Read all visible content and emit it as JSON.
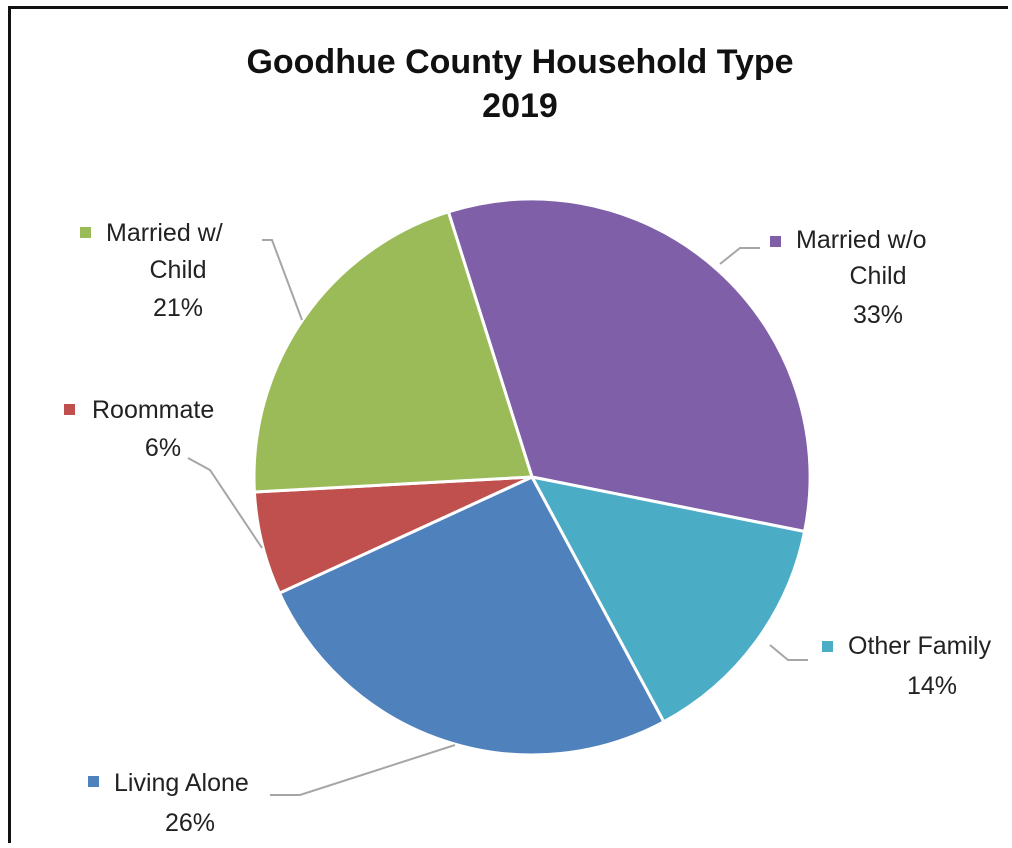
{
  "chart_data": {
    "type": "pie",
    "title": [
      "Goodhue County Household Type",
      "2019"
    ],
    "start_angle_deg": -17.5,
    "direction": "clockwise",
    "slices": [
      {
        "label": [
          "Married w/o",
          "Child"
        ],
        "pct_text": "33%",
        "value": 33,
        "color": "#7F5FA8"
      },
      {
        "label": [
          "Other Family"
        ],
        "pct_text": "14%",
        "value": 14,
        "color": "#4BACC6"
      },
      {
        "label": [
          "Living Alone"
        ],
        "pct_text": "26%",
        "value": 26,
        "color": "#4F81BD"
      },
      {
        "label": [
          "Roommate"
        ],
        "pct_text": "6%",
        "value": 6,
        "color": "#C0504D"
      },
      {
        "label": [
          "Married w/",
          "Child"
        ],
        "pct_text": "21%",
        "value": 21,
        "color": "#9BBB59"
      }
    ]
  }
}
